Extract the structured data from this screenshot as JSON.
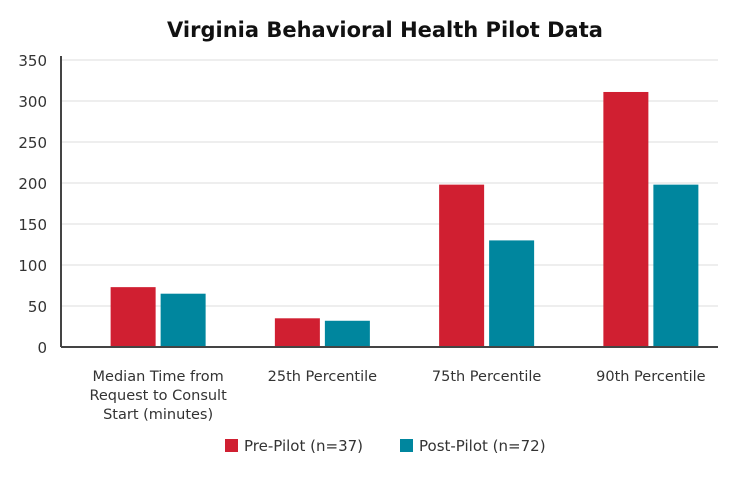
{
  "chart_data": {
    "type": "bar",
    "title": "Virginia Behavioral Health Pilot Data",
    "xlabel": "",
    "ylabel": "",
    "ylim": [
      0,
      350
    ],
    "yticks": [
      0,
      50,
      100,
      150,
      200,
      250,
      300,
      350
    ],
    "grid": true,
    "legend_position": "bottom",
    "categories": [
      [
        "Median Time from",
        "Request to Consult",
        "Start (minutes)"
      ],
      [
        "25th Percentile"
      ],
      [
        "75th Percentile"
      ],
      [
        "90th Percentile"
      ]
    ],
    "series": [
      {
        "name": "Pre-Pilot (n=37)",
        "color": "#d01f31",
        "values": [
          73,
          35,
          198,
          311
        ]
      },
      {
        "name": "Post-Pilot (n=72)",
        "color": "#00869e",
        "values": [
          65,
          32,
          130,
          198
        ]
      }
    ]
  }
}
